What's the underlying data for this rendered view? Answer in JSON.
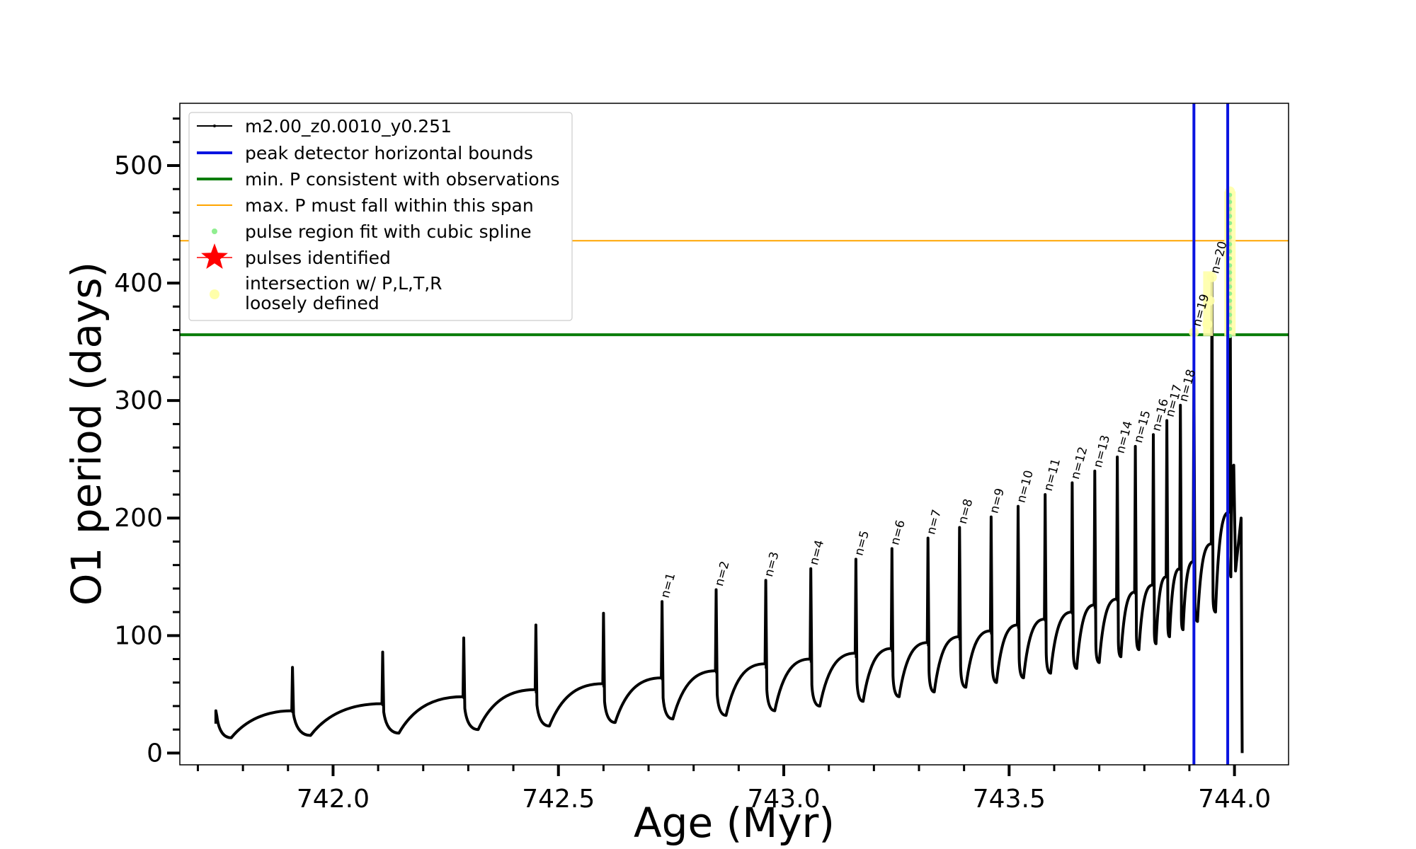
{
  "chart_data": {
    "type": "line",
    "xlabel": "Age (Myr)",
    "ylabel": "O1 period (days)",
    "xlim": [
      741.66,
      744.12
    ],
    "ylim": [
      -10,
      553
    ],
    "xticks": [
      {
        "value": 742.0,
        "label": "742.0"
      },
      {
        "value": 742.5,
        "label": "742.5"
      },
      {
        "value": 743.0,
        "label": "743.0"
      },
      {
        "value": 743.5,
        "label": "743.5"
      },
      {
        "value": 744.0,
        "label": "744.0"
      }
    ],
    "yticks": [
      {
        "value": 0,
        "label": "0"
      },
      {
        "value": 100,
        "label": "100"
      },
      {
        "value": 200,
        "label": "200"
      },
      {
        "value": 300,
        "label": "300"
      },
      {
        "value": 400,
        "label": "400"
      },
      {
        "value": 500,
        "label": "500"
      }
    ],
    "colors": {
      "series": "#000000",
      "bounds": "#0a14e0",
      "min_p": "#0a7d0a",
      "max_p": "#ffa500",
      "spline": "#90ee90",
      "pulses": "#ff0000",
      "intersection": "#ffffaa"
    },
    "series": [
      {
        "name": "m2.00_z0.0010_y0.251",
        "start": {
          "x": 741.74,
          "y": 25
        },
        "pulses": [
          {
            "x": 741.74,
            "peak": 36,
            "min": 13,
            "end_level": 36
          },
          {
            "x": 741.91,
            "peak": 73,
            "min": 15,
            "end_level": 42
          },
          {
            "x": 742.11,
            "peak": 86,
            "min": 17,
            "end_level": 48
          },
          {
            "x": 742.29,
            "peak": 98,
            "min": 20,
            "end_level": 54
          },
          {
            "x": 742.45,
            "peak": 109,
            "min": 23,
            "end_level": 59
          },
          {
            "x": 742.6,
            "peak": 119,
            "min": 26,
            "end_level": 64
          },
          {
            "x": 742.73,
            "peak": 129,
            "min": 29,
            "end_level": 70
          },
          {
            "x": 742.85,
            "peak": 139,
            "min": 32,
            "end_level": 76
          },
          {
            "x": 742.96,
            "peak": 147,
            "min": 36,
            "end_level": 80
          },
          {
            "x": 743.06,
            "peak": 157,
            "min": 40,
            "end_level": 85
          },
          {
            "x": 743.16,
            "peak": 165,
            "min": 44,
            "end_level": 89
          },
          {
            "x": 743.24,
            "peak": 174,
            "min": 48,
            "end_level": 94
          },
          {
            "x": 743.32,
            "peak": 183,
            "min": 52,
            "end_level": 99
          },
          {
            "x": 743.39,
            "peak": 192,
            "min": 56,
            "end_level": 104
          },
          {
            "x": 743.46,
            "peak": 201,
            "min": 60,
            "end_level": 109
          },
          {
            "x": 743.52,
            "peak": 210,
            "min": 64,
            "end_level": 114
          },
          {
            "x": 743.58,
            "peak": 220,
            "min": 68,
            "end_level": 120
          },
          {
            "x": 743.64,
            "peak": 230,
            "min": 72,
            "end_level": 126
          },
          {
            "x": 743.69,
            "peak": 240,
            "min": 77,
            "end_level": 131
          },
          {
            "x": 743.74,
            "peak": 252,
            "min": 82,
            "end_level": 137
          },
          {
            "x": 743.78,
            "peak": 261,
            "min": 88,
            "end_level": 143
          },
          {
            "x": 743.82,
            "peak": 271,
            "min": 93,
            "end_level": 150
          },
          {
            "x": 743.85,
            "peak": 283,
            "min": 99,
            "end_level": 157
          },
          {
            "x": 743.88,
            "peak": 296,
            "min": 105,
            "end_level": 163
          },
          {
            "x": 743.91,
            "peak": 320,
            "min": 112,
            "end_level": 178
          },
          {
            "x": 743.95,
            "peak": 405,
            "min": 120,
            "end_level": 205
          },
          {
            "x": 743.99,
            "peak": 475,
            "min": 150,
            "end_level": 245
          }
        ],
        "tail": [
          {
            "x": 744.0,
            "y": 210
          },
          {
            "x": 744.0,
            "y": 155
          },
          {
            "x": 744.01,
            "y": 200
          },
          {
            "x": 744.01,
            "y": 0
          }
        ]
      }
    ],
    "pulse_labels": [
      {
        "text": "n=1",
        "x": 742.73,
        "y": 129
      },
      {
        "text": "n=2",
        "x": 742.85,
        "y": 139
      },
      {
        "text": "n=3",
        "x": 742.96,
        "y": 147
      },
      {
        "text": "n=4",
        "x": 743.06,
        "y": 157
      },
      {
        "text": "n=5",
        "x": 743.16,
        "y": 165
      },
      {
        "text": "n=6",
        "x": 743.24,
        "y": 174
      },
      {
        "text": "n=7",
        "x": 743.32,
        "y": 183
      },
      {
        "text": "n=8",
        "x": 743.39,
        "y": 192
      },
      {
        "text": "n=9",
        "x": 743.46,
        "y": 201
      },
      {
        "text": "n=10",
        "x": 743.52,
        "y": 210
      },
      {
        "text": "n=11",
        "x": 743.58,
        "y": 220
      },
      {
        "text": "n=12",
        "x": 743.64,
        "y": 230
      },
      {
        "text": "n=13",
        "x": 743.69,
        "y": 240
      },
      {
        "text": "n=14",
        "x": 743.74,
        "y": 252
      },
      {
        "text": "n=15",
        "x": 743.78,
        "y": 261
      },
      {
        "text": "n=16",
        "x": 743.82,
        "y": 271
      },
      {
        "text": "n=17",
        "x": 743.85,
        "y": 283
      },
      {
        "text": "n=18",
        "x": 743.88,
        "y": 296
      },
      {
        "text": "n=19",
        "x": 743.91,
        "y": 360
      },
      {
        "text": "n=20",
        "x": 743.95,
        "y": 405
      }
    ],
    "vertical_bounds": [
      743.91,
      743.985
    ],
    "min_p_line": 356,
    "max_p_line": 436,
    "spline_region": {
      "x": 743.99,
      "y_from": 355,
      "y_to": 478
    },
    "intersection_points": [
      {
        "x": 743.91,
        "y": 358
      },
      {
        "x": 743.94,
        "y": 365
      },
      {
        "x": 743.945,
        "y": 385
      },
      {
        "x": 743.95,
        "y": 405
      },
      {
        "x": 743.99,
        "y": 360
      },
      {
        "x": 743.99,
        "y": 390
      },
      {
        "x": 743.99,
        "y": 420
      },
      {
        "x": 743.99,
        "y": 450
      },
      {
        "x": 743.99,
        "y": 478
      }
    ],
    "legend": {
      "placement": "upper-left",
      "entries": [
        {
          "key": "line",
          "label": "m2.00_z0.0010_y0.251"
        },
        {
          "key": "bounds",
          "label": "peak detector horizontal bounds"
        },
        {
          "key": "min_p",
          "label": "min. P consistent with observations"
        },
        {
          "key": "max_p",
          "label": "max. P must fall within this span"
        },
        {
          "key": "spline",
          "label": "pulse region fit with cubic spline"
        },
        {
          "key": "pulses",
          "label": "pulses identified"
        },
        {
          "key": "intersection",
          "label": "intersection w/ P,L,T,R",
          "label2": "loosely defined"
        }
      ]
    }
  }
}
